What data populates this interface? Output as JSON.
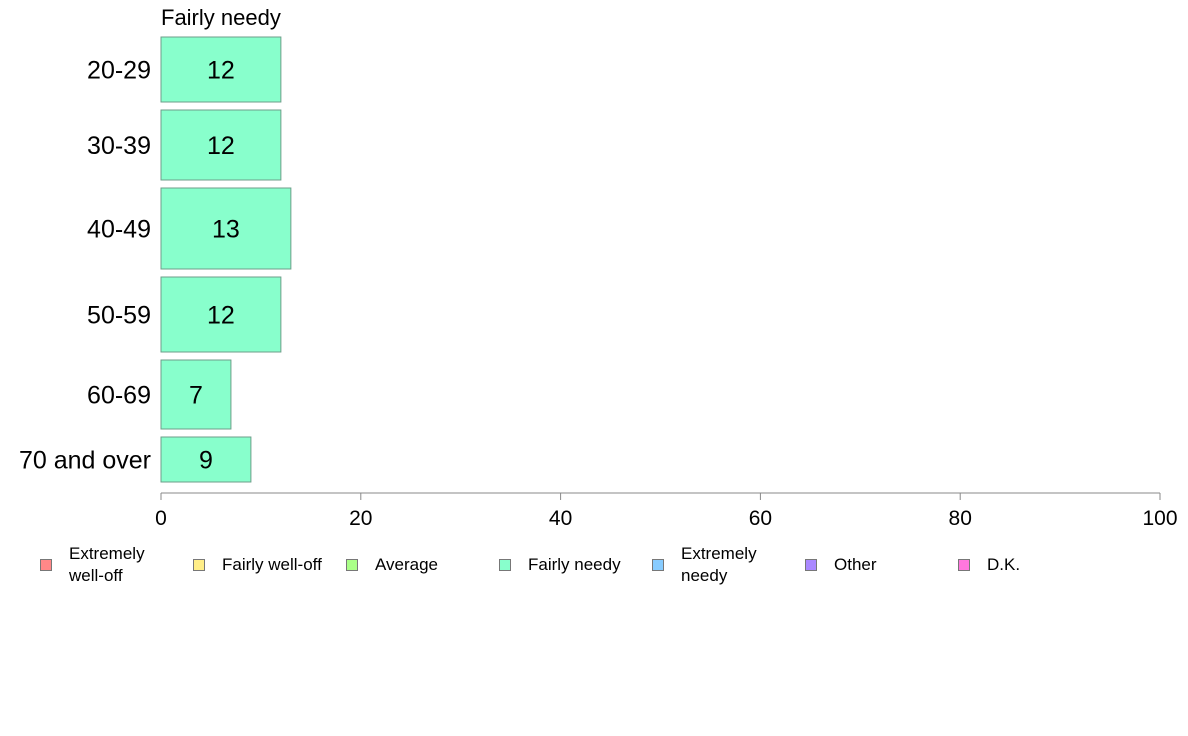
{
  "chart_data": {
    "type": "bar",
    "orientation": "horizontal",
    "title": "Fairly needy",
    "categories": [
      "20-29",
      "30-39",
      "40-49",
      "50-59",
      "60-69",
      "70 and over"
    ],
    "values": [
      12,
      12,
      13,
      12,
      7,
      9
    ],
    "value_labels": [
      "12",
      "12",
      "13",
      "12",
      "7",
      "9"
    ],
    "bar_color": "#88ffcc",
    "xlim": [
      0,
      100
    ],
    "x_ticks": [
      0,
      20,
      40,
      60,
      80,
      100
    ],
    "grid": false,
    "legend": {
      "placement": "bottom",
      "items": [
        {
          "label": "Extremely\nwell-off",
          "color": "#ff8888"
        },
        {
          "label": "Fairly well-off",
          "color": "#ffee88"
        },
        {
          "label": "Average",
          "color": "#aaff88"
        },
        {
          "label": "Fairly needy",
          "color": "#88ffcc"
        },
        {
          "label": "Extremely\nneedy",
          "color": "#88ccff"
        },
        {
          "label": "Other",
          "color": "#aa88ff"
        },
        {
          "label": "D.K.",
          "color": "#ff77dd"
        }
      ]
    }
  }
}
